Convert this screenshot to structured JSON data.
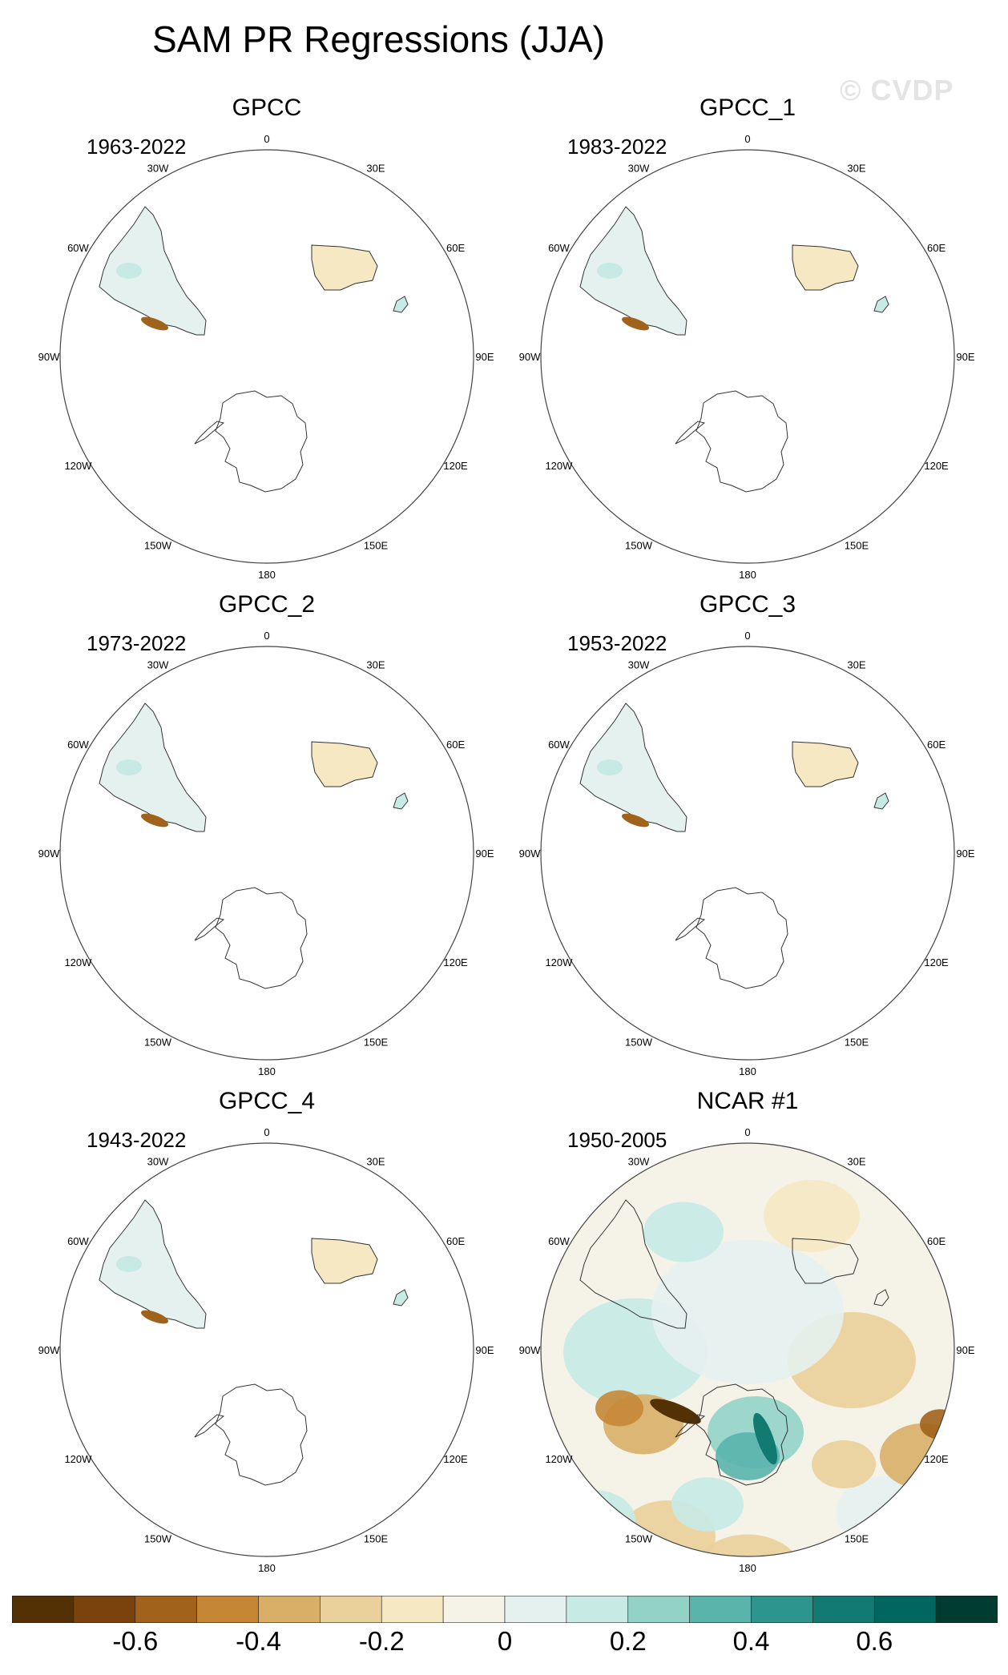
{
  "title": "SAM PR Regressions (JJA)",
  "watermark": "© CVDP",
  "lon_labels": [
    "0",
    "30E",
    "60E",
    "90E",
    "120E",
    "150E",
    "180",
    "150W",
    "120W",
    "90W",
    "60W",
    "30W"
  ],
  "panels": [
    {
      "name": "GPCC",
      "years": "1963-2022",
      "coverage": "land-only"
    },
    {
      "name": "GPCC_1",
      "years": "1983-2022",
      "coverage": "land-only"
    },
    {
      "name": "GPCC_2",
      "years": "1973-2022",
      "coverage": "land-only"
    },
    {
      "name": "GPCC_3",
      "years": "1953-2022",
      "coverage": "land-only"
    },
    {
      "name": "GPCC_4",
      "years": "1943-2022",
      "coverage": "land-only"
    },
    {
      "name": "NCAR #1",
      "years": "1950-2005",
      "coverage": "global"
    }
  ],
  "colorbar": {
    "ticks": [
      "-0.6",
      "-0.4",
      "-0.2",
      "0",
      "0.2",
      "0.4",
      "0.6"
    ],
    "colors": [
      "#543005",
      "#7a430e",
      "#a1621b",
      "#c58736",
      "#d9af68",
      "#ead09a",
      "#f6e8c3",
      "#f5f2e8",
      "#e5f1ef",
      "#c7eae5",
      "#93d3c7",
      "#5ab4ac",
      "#2e958c",
      "#137a72",
      "#01665e",
      "#003c30"
    ]
  }
}
